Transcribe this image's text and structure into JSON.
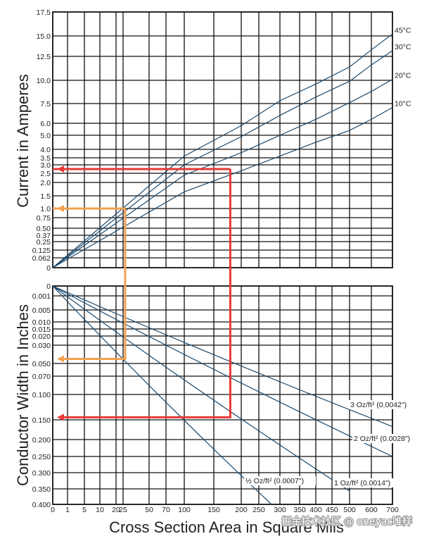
{
  "chart_data": {
    "type": "line",
    "title": "",
    "xlabel": "Cross Section Area in Square Mils",
    "x_ticks": [
      "0",
      "1",
      "5",
      "10",
      "20",
      "25",
      "50",
      "70",
      "100",
      "150",
      "200",
      "250",
      "300",
      "350",
      "400",
      "450",
      "500",
      "600",
      "700"
    ],
    "top_chart": {
      "ylabel": "Current in Amperes",
      "y_ticks": [
        "0",
        "0.062",
        "0.125",
        "0.25",
        "0.37",
        "0.50",
        "0.75",
        "1.0",
        "1.5",
        "2.0",
        "2.5",
        "3.0",
        "3.5",
        "4.0",
        "5.0",
        "6.0",
        "7.5",
        "10.0",
        "12.5",
        "15.0",
        "17.5"
      ],
      "series": [
        {
          "name": "45°C",
          "x": [
            0,
            100,
            200,
            300,
            400,
            500,
            600,
            700
          ],
          "y": [
            0,
            3.6,
            5.8,
            7.8,
            9.6,
            11.4,
            13.3,
            15.2
          ]
        },
        {
          "name": "30°C",
          "x": [
            0,
            100,
            200,
            300,
            400,
            500,
            600,
            700
          ],
          "y": [
            0,
            3.0,
            4.9,
            6.6,
            8.2,
            9.9,
            11.6,
            13.2
          ]
        },
        {
          "name": "20°C",
          "x": [
            0,
            100,
            200,
            300,
            400,
            500,
            600,
            700
          ],
          "y": [
            0,
            2.4,
            3.8,
            5.0,
            6.3,
            7.6,
            8.8,
            10.1
          ]
        },
        {
          "name": "10°C",
          "x": [
            0,
            100,
            200,
            300,
            400,
            500,
            600,
            700
          ],
          "y": [
            0,
            1.65,
            2.65,
            3.6,
            4.5,
            5.4,
            6.3,
            7.2
          ]
        }
      ]
    },
    "bottom_chart": {
      "ylabel": "Conductor Width in Inches",
      "y_ticks": [
        "0",
        "0.001",
        "0.005",
        "0.010",
        "0.015",
        "0.020",
        "0.030",
        "0.050",
        "0.070",
        "0.100",
        "0.150",
        "0.200",
        "0.250",
        "0.300",
        "0.350",
        "0.400"
      ],
      "series": [
        {
          "name": "3 Oz/ft² (0.0042\")",
          "x": [
            0,
            700
          ],
          "y": [
            0,
            0.167
          ]
        },
        {
          "name": "2 Oz/ft² (0.0028\")",
          "x": [
            0,
            700
          ],
          "y": [
            0,
            0.25
          ]
        },
        {
          "name": "1 Oz/ft² (0.0014\")",
          "x": [
            0,
            500
          ],
          "y": [
            0,
            0.357
          ]
        },
        {
          "name": "½ Oz/ft² (0.0007\")",
          "x": [
            0,
            280
          ],
          "y": [
            0,
            0.4
          ]
        }
      ]
    },
    "example_paths": [
      {
        "color": "#e53935",
        "current_a": 2.75,
        "area_sq_mils": 180,
        "width_in": 0.145
      },
      {
        "color": "#f0a050",
        "current_a": 1.0,
        "area_sq_mils": 27,
        "width_in": 0.045
      }
    ]
  },
  "watermark": "掘金技术社区 @ oneyac唯样"
}
